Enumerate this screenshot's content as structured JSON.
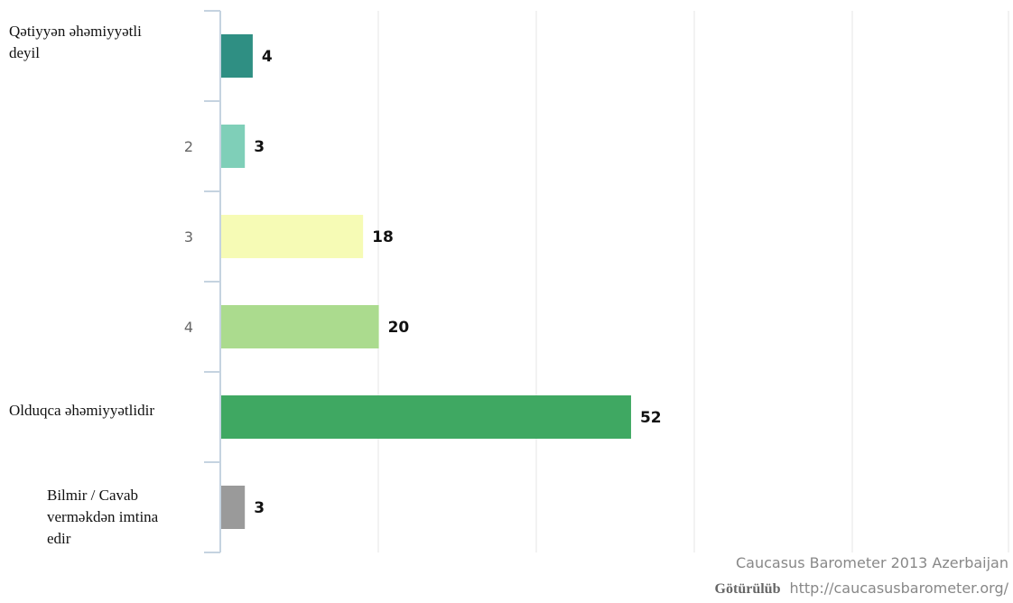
{
  "chart_data": {
    "type": "bar",
    "orientation": "horizontal",
    "categories": [
      "Qətiyyən əhəmiyyətli deyil",
      "2",
      "3",
      "4",
      "Olduqca əhəmiyyətlidir",
      "Bilmir / Cavab verməkdən imtina edir"
    ],
    "values": [
      4,
      3,
      18,
      20,
      52,
      3
    ],
    "xlim": [
      0,
      100
    ],
    "grid": true,
    "colors": [
      "#2f8f83",
      "#7fcfb8",
      "#f6fbb5",
      "#abdb8e",
      "#3fa862",
      "#9a9a9a"
    ]
  },
  "source": {
    "line1": "Caucasus Barometer 2013 Azerbaijan",
    "prefix": "Götürülüb",
    "url": "http://caucasusbarometer.org/"
  }
}
